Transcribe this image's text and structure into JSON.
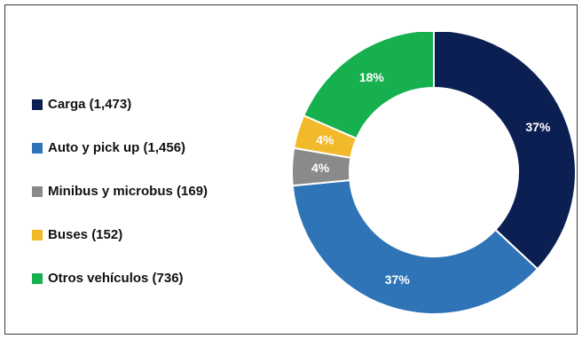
{
  "chart_data": {
    "type": "pie",
    "variant": "donut",
    "title": "",
    "legend_position": "left",
    "slices": [
      {
        "label": "Carga (1,473)",
        "name": "Carga",
        "value": 1473,
        "pct_label": "37%",
        "color": "#0c1f52"
      },
      {
        "label": "Auto y pick up (1,456)",
        "name": "Auto y pick up",
        "value": 1456,
        "pct_label": "37%",
        "color": "#2f74b7"
      },
      {
        "label": "Minibus y microbus (169)",
        "name": "Minibus y microbus",
        "value": 169,
        "pct_label": "4%",
        "color": "#8a8a8a"
      },
      {
        "label": "Buses (152)",
        "name": "Buses",
        "value": 152,
        "pct_label": "4%",
        "color": "#f2b92a"
      },
      {
        "label": "Otros vehículos (736)",
        "name": "Otros vehículos",
        "value": 736,
        "pct_label": "18%",
        "color": "#16b04f"
      }
    ]
  }
}
